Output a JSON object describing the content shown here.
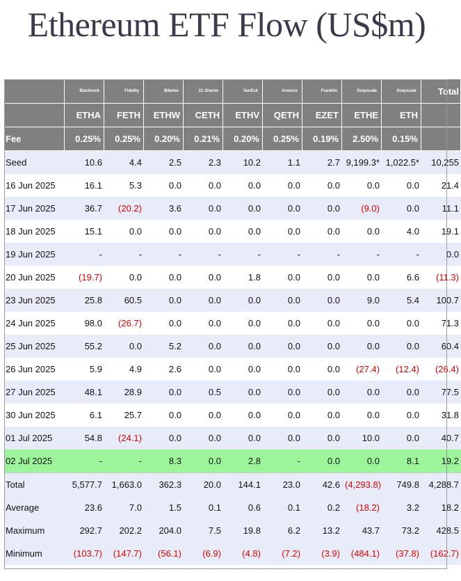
{
  "title": "Ethereum ETF Flow (US$m)",
  "chart_data": {
    "type": "table",
    "title": "Ethereum ETF Flow (US$m)",
    "issuers": [
      "Blackrock",
      "Fidelity",
      "Bitwise",
      "21 Shares",
      "VanEck",
      "Invesco",
      "Franklin",
      "Grayscale",
      "Grayscale"
    ],
    "total_label": "Total",
    "tickers": [
      "ETHA",
      "FETH",
      "ETHW",
      "CETH",
      "ETHV",
      "QETH",
      "EZET",
      "ETHE",
      "ETH"
    ],
    "fee_label": "Fee",
    "fees": [
      "0.25%",
      "0.25%",
      "0.20%",
      "0.21%",
      "0.20%",
      "0.25%",
      "0.19%",
      "2.50%",
      "0.15%"
    ],
    "rows": [
      {
        "label": "Seed",
        "values": [
          "10.6",
          "4.4",
          "2.5",
          "2.3",
          "10.2",
          "1.1",
          "2.7",
          "9,199.3*",
          "1,022.5*",
          "10,255"
        ]
      },
      {
        "label": "16 Jun 2025",
        "values": [
          "16.1",
          "5.3",
          "0.0",
          "0.0",
          "0.0",
          "0.0",
          "0.0",
          "0.0",
          "0.0",
          "21.4"
        ]
      },
      {
        "label": "17 Jun 2025",
        "values": [
          "36.7",
          "(20.2)",
          "3.6",
          "0.0",
          "0.0",
          "0.0",
          "0.0",
          "(9.0)",
          "0.0",
          "11.1"
        ]
      },
      {
        "label": "18 Jun 2025",
        "values": [
          "15.1",
          "0.0",
          "0.0",
          "0.0",
          "0.0",
          "0.0",
          "0.0",
          "0.0",
          "4.0",
          "19.1"
        ]
      },
      {
        "label": "19 Jun 2025",
        "values": [
          "-",
          "-",
          "-",
          "-",
          "-",
          "-",
          "-",
          "-",
          "-",
          "0.0"
        ]
      },
      {
        "label": "20 Jun 2025",
        "values": [
          "(19.7)",
          "0.0",
          "0.0",
          "0.0",
          "1.8",
          "0.0",
          "0.0",
          "0.0",
          "6.6",
          "(11.3)"
        ]
      },
      {
        "label": "23 Jun 2025",
        "values": [
          "25.8",
          "60.5",
          "0.0",
          "0.0",
          "0.0",
          "0.0",
          "0.0",
          "9.0",
          "5.4",
          "100.7"
        ]
      },
      {
        "label": "24 Jun 2025",
        "values": [
          "98.0",
          "(26.7)",
          "0.0",
          "0.0",
          "0.0",
          "0.0",
          "0.0",
          "0.0",
          "0.0",
          "71.3"
        ]
      },
      {
        "label": "25 Jun 2025",
        "values": [
          "55.2",
          "0.0",
          "5.2",
          "0.0",
          "0.0",
          "0.0",
          "0.0",
          "0.0",
          "0.0",
          "60.4"
        ]
      },
      {
        "label": "26 Jun 2025",
        "values": [
          "5.9",
          "4.9",
          "2.6",
          "0.0",
          "0.0",
          "0.0",
          "0.0",
          "(27.4)",
          "(12.4)",
          "(26.4)"
        ]
      },
      {
        "label": "27 Jun 2025",
        "values": [
          "48.1",
          "28.9",
          "0.0",
          "0.5",
          "0.0",
          "0.0",
          "0.0",
          "0.0",
          "0.0",
          "77.5"
        ]
      },
      {
        "label": "30 Jun 2025",
        "values": [
          "6.1",
          "25.7",
          "0.0",
          "0.0",
          "0.0",
          "0.0",
          "0.0",
          "0.0",
          "0.0",
          "31.8"
        ]
      },
      {
        "label": "01 Jul 2025",
        "values": [
          "54.8",
          "(24.1)",
          "0.0",
          "0.0",
          "0.0",
          "0.0",
          "0.0",
          "10.0",
          "0.0",
          "40.7"
        ]
      },
      {
        "label": "02 Jul 2025",
        "values": [
          "-",
          "-",
          "8.3",
          "0.0",
          "2.8",
          "-",
          "0.0",
          "0.0",
          "8.1",
          "19.2"
        ],
        "highlight": "#9cf59a"
      }
    ],
    "summary": [
      {
        "label": "Total",
        "values": [
          "5,577.7",
          "1,663.0",
          "362.3",
          "20.0",
          "144.1",
          "23.0",
          "42.6",
          "(4,293.8)",
          "749.8",
          "4,288.7"
        ]
      },
      {
        "label": "Average",
        "values": [
          "23.6",
          "7.0",
          "1.5",
          "0.1",
          "0.6",
          "0.1",
          "0.2",
          "(18.2)",
          "3.2",
          "18.2"
        ]
      },
      {
        "label": "Maximum",
        "values": [
          "292.7",
          "202.2",
          "204.0",
          "7.5",
          "19.8",
          "6.2",
          "13.2",
          "43.7",
          "73.2",
          "428.5"
        ]
      },
      {
        "label": "Minimum",
        "values": [
          "(103.7)",
          "(147.7)",
          "(56.1)",
          "(6.9)",
          "(4.8)",
          "(7.2)",
          "(3.9)",
          "(484.1)",
          "(37.8)",
          "(162.7)"
        ]
      }
    ],
    "colors": {
      "header_bg": "#808080",
      "band": "#e8ecf8",
      "highlight": "#9cf59a",
      "negative": "#dd0000",
      "title": "#3a3a4a"
    }
  }
}
